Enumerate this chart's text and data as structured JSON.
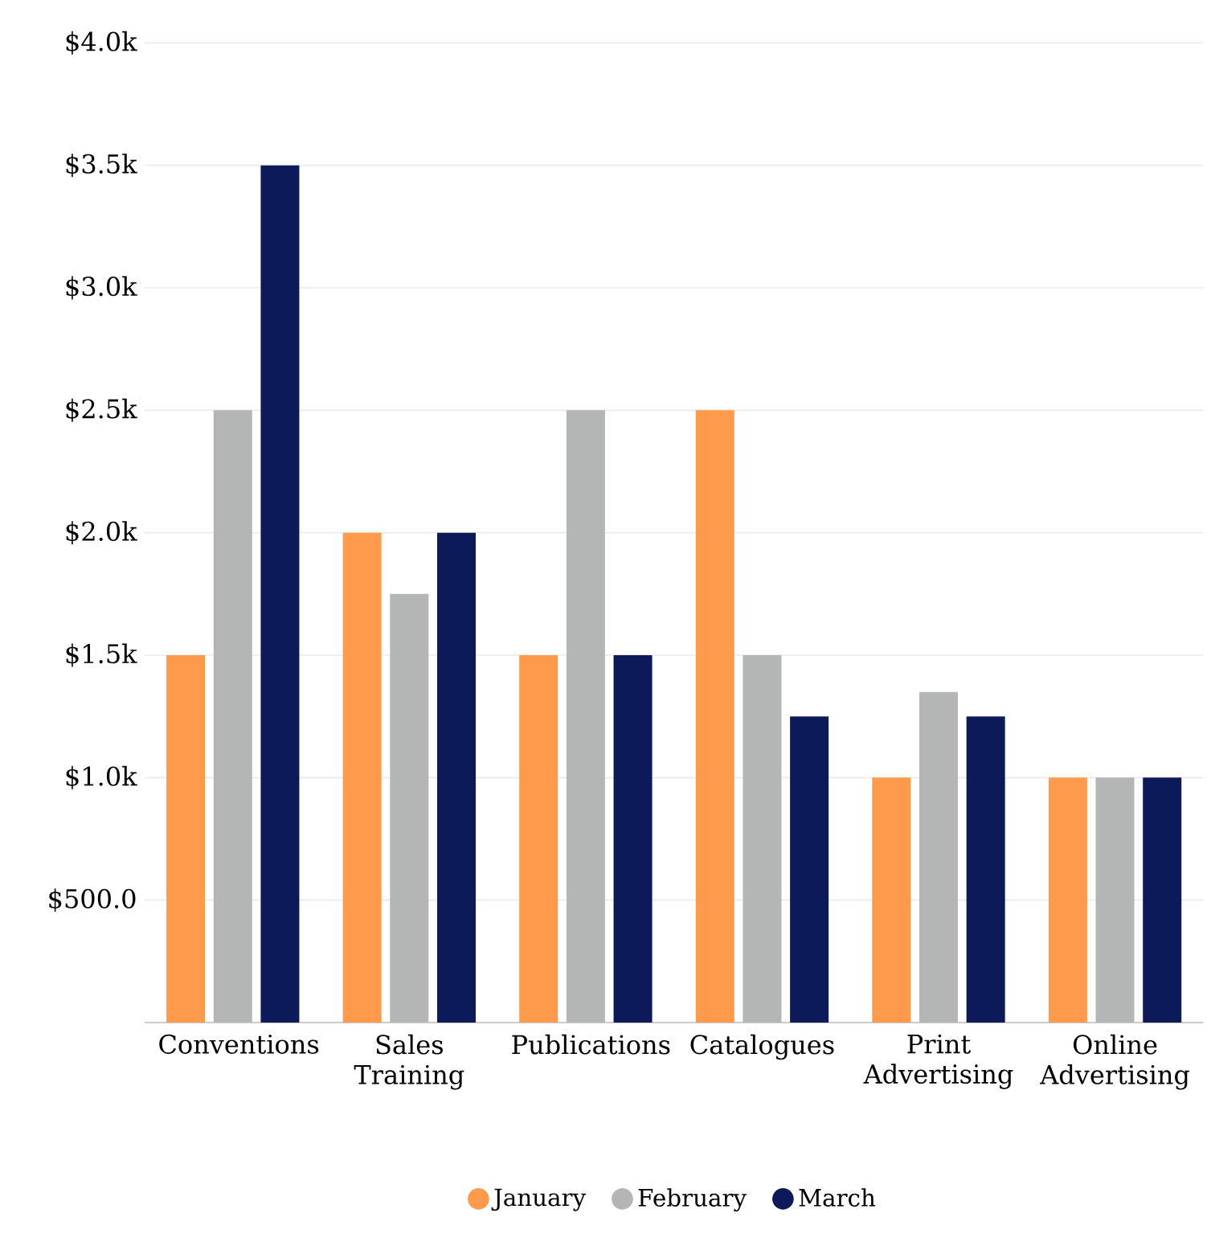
{
  "chart_data": {
    "type": "bar",
    "categories": [
      "Conventions",
      "Sales Training",
      "Publications",
      "Catalogues",
      "Print Advertising",
      "Online Advertising"
    ],
    "series": [
      {
        "name": "January",
        "color": "#fd9a4b",
        "values": [
          1500,
          2000,
          1500,
          2500,
          1000,
          1000
        ]
      },
      {
        "name": "February",
        "color": "#b4b6b5",
        "values": [
          2500,
          1750,
          2500,
          1500,
          1350,
          1000
        ]
      },
      {
        "name": "March",
        "color": "#0c1a5a",
        "values": [
          3500,
          2000,
          1500,
          1250,
          1250,
          1000
        ]
      }
    ],
    "ylim": [
      0,
      4000
    ],
    "yticks": [
      {
        "value": 500,
        "label": "$500.0"
      },
      {
        "value": 1000,
        "label": "$1.0k"
      },
      {
        "value": 1500,
        "label": "$1.5k"
      },
      {
        "value": 2000,
        "label": "$2.0k"
      },
      {
        "value": 2500,
        "label": "$2.5k"
      },
      {
        "value": 3000,
        "label": "$3.0k"
      },
      {
        "value": 3500,
        "label": "$3.5k"
      },
      {
        "value": 4000,
        "label": "$4.0k"
      }
    ],
    "grid": "y",
    "legend": "bottom",
    "marker": "circle"
  }
}
